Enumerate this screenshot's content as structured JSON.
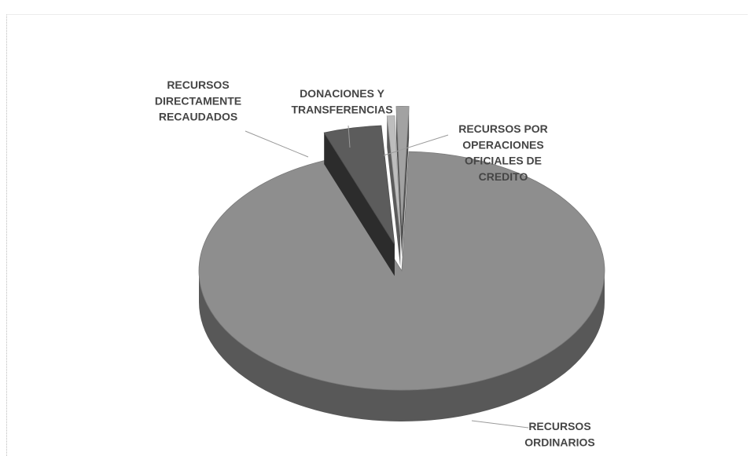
{
  "chart_data": {
    "type": "pie",
    "three_d": true,
    "exploded": true,
    "title": "",
    "legend": "none",
    "slices": [
      {
        "label": [
          "RECURSOS",
          "ORDINARIOS"
        ],
        "value": 93.8,
        "color": "#8e8e8e"
      },
      {
        "label": [
          "RECURSOS",
          "DIRECTAMENTE",
          "RECAUDADOS"
        ],
        "value": 4.6,
        "color": "#5c5c5c"
      },
      {
        "label": [
          "DONACIONES Y",
          "TRANSFERENCIAS"
        ],
        "value": 0.6,
        "color": "#bdbdbd"
      },
      {
        "label": [
          "RECURSOS POR",
          "OPERACIONES",
          "OFICIALES DE",
          "CREDITO"
        ],
        "value": 1.0,
        "color": "#a2a2a2"
      }
    ]
  }
}
